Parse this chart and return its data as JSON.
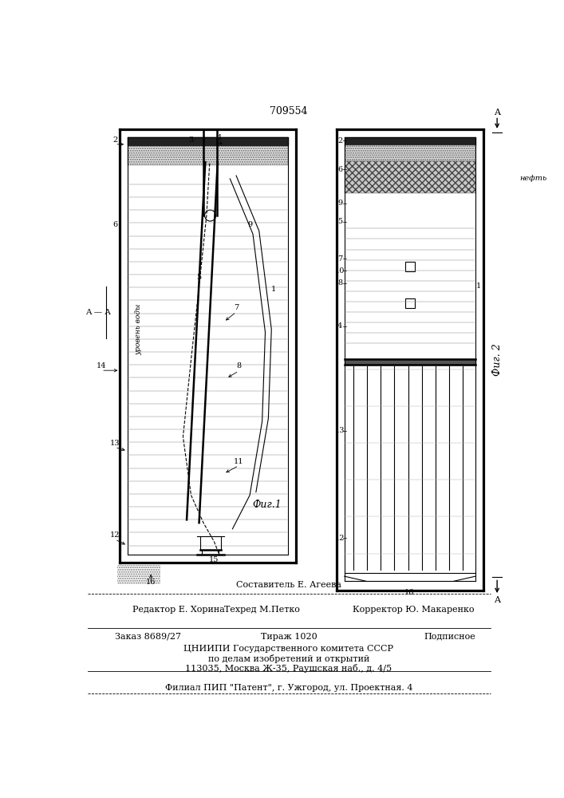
{
  "patent_number": "709554",
  "fig1_label": "Фиг.1",
  "fig2_label": "Фиг. 2",
  "section_label": "A — A",
  "editor_line": "Редактор Е. Хорина",
  "composer_line": "Составитель Е. Агеева",
  "techred_line": "Техред М.Петко",
  "corrector_line": "Корректор Ю. Макаренко",
  "order_line": "Заказ 8689/27",
  "tirazh_line": "Тираж 1020",
  "podpisnoe_line": "Подписное",
  "org_line1": "ЦНИИПИ Государственного комитета СССР",
  "org_line2": "по делам изобретений и открытий",
  "org_line3": "113035, Москва Ж-35, Раушская наб., д. 4/5",
  "filial_line": "Филиал ПИП \"Патент\", г. Ужгород, ул. Проектная. 4",
  "bg_color": "#ffffff",
  "line_color": "#000000"
}
